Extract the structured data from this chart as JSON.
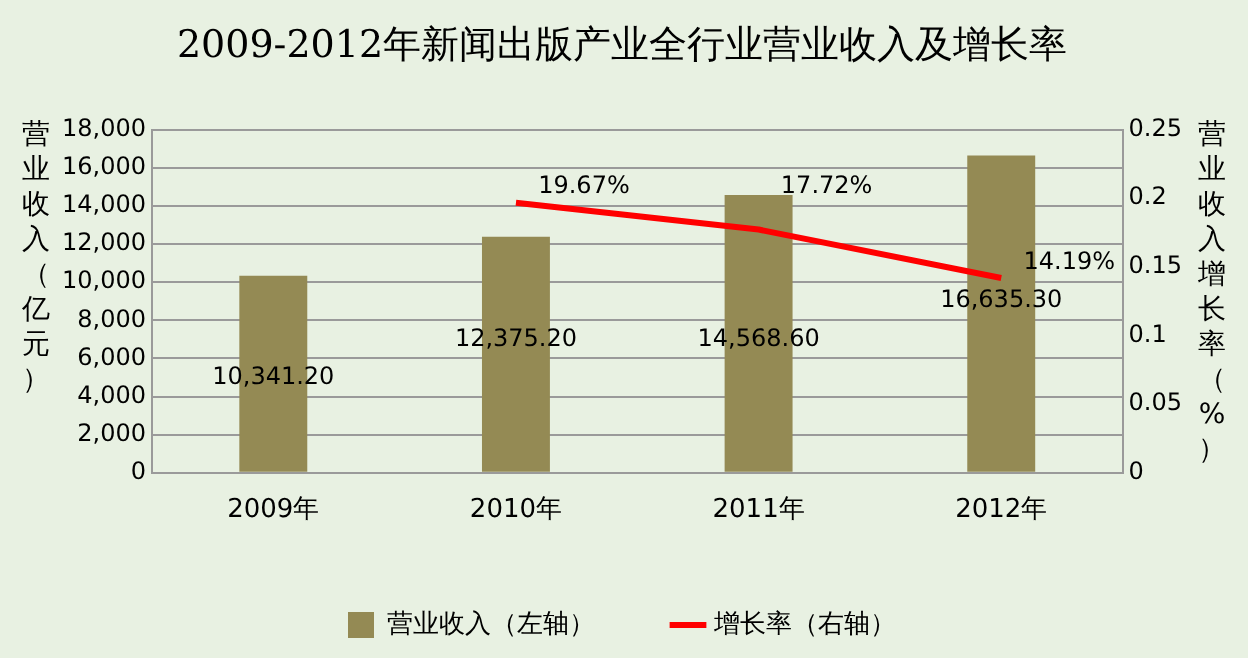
{
  "chart_data": {
    "type": "bar",
    "title": "2009-2012年新闻出版产业全行业营业收入及增长率",
    "ylabel": "营业收入（亿元）",
    "y2label": "营业收入增长率（%）",
    "categories": [
      "2009年",
      "2010年",
      "2011年",
      "2012年"
    ],
    "series": [
      {
        "name": "营业收入（左轴）",
        "color": "#948a54",
        "values": [
          10341.2,
          12375.2,
          14568.6,
          16635.3
        ],
        "value_labels": [
          "10,341.20",
          "12,375.20",
          "14,568.60",
          "16,635.30"
        ]
      },
      {
        "name": "增长率（右轴）",
        "type": "line",
        "axis": "y2",
        "color": "#ff0000",
        "values": [
          null,
          0.1967,
          0.1772,
          0.1419
        ],
        "value_labels": [
          null,
          "19.67%",
          "17.72%",
          "14.19%"
        ]
      }
    ],
    "ylim": [
      0,
      18000
    ],
    "yticks": [
      {
        "value": 0,
        "label": "0"
      },
      {
        "value": 2000,
        "label": "2,000"
      },
      {
        "value": 4000,
        "label": "4,000"
      },
      {
        "value": 6000,
        "label": "6,000"
      },
      {
        "value": 8000,
        "label": "8,000"
      },
      {
        "value": 10000,
        "label": "10,000"
      },
      {
        "value": 12000,
        "label": "12,000"
      },
      {
        "value": 14000,
        "label": "14,000"
      },
      {
        "value": 16000,
        "label": "16,000"
      },
      {
        "value": 18000,
        "label": "18,000"
      }
    ],
    "y2lim": [
      0,
      0.25
    ],
    "y2ticks": [
      0,
      0.05,
      0.1,
      0.15,
      0.2,
      0.25
    ],
    "grid": "y",
    "legend": "bottom",
    "marker": "none",
    "line_style": "solid"
  }
}
